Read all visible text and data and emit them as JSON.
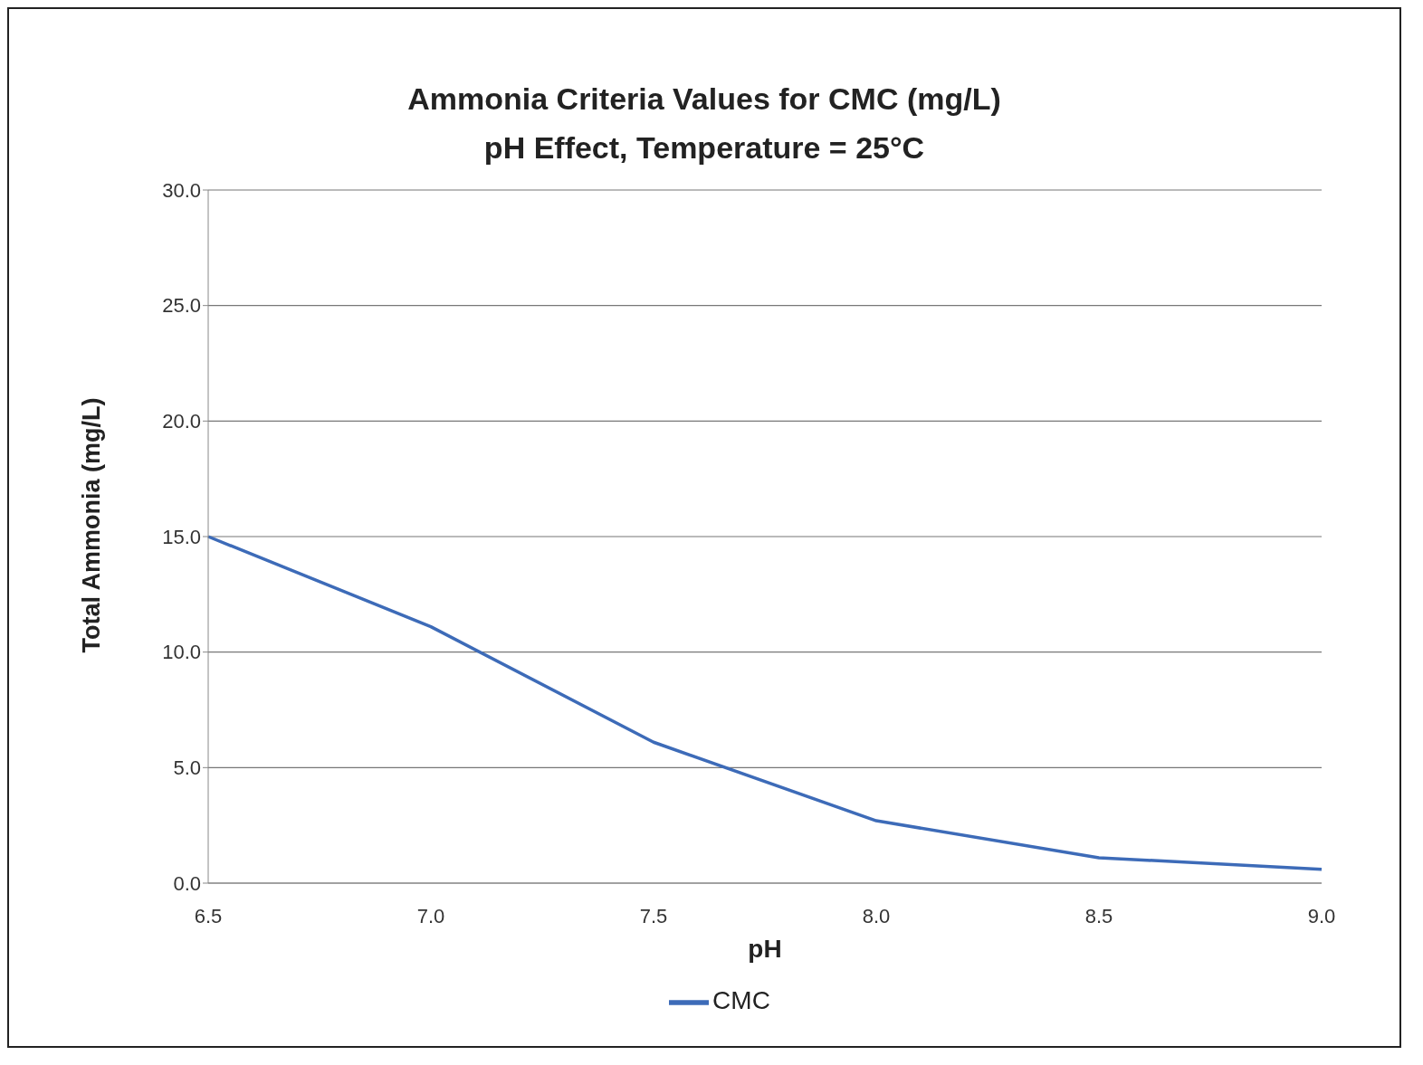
{
  "chart_data": {
    "type": "line",
    "title": "Ammonia Criteria Values for CMC (mg/L)",
    "subtitle": "pH Effect, Temperature = 25°C",
    "xlabel": "pH",
    "ylabel": "Total Ammonia (mg/L)",
    "categories": [
      "6.5",
      "7.0",
      "7.5",
      "8.0",
      "8.5",
      "9.0"
    ],
    "series": [
      {
        "name": "CMC",
        "color": "#3d6bb8",
        "values": [
          15.0,
          11.1,
          6.1,
          2.7,
          1.1,
          0.6
        ]
      }
    ],
    "ylim": [
      0,
      30
    ],
    "yticks": [
      {
        "value": 0,
        "label": "0.0"
      },
      {
        "value": 5,
        "label": "5.0"
      },
      {
        "value": 10,
        "label": "10.0"
      },
      {
        "value": 15,
        "label": "15.0"
      },
      {
        "value": 20,
        "label": "20.0"
      },
      {
        "value": 25,
        "label": "25.0"
      },
      {
        "value": 30,
        "label": "30.0"
      }
    ],
    "grid": "y",
    "legend": "bottom",
    "marker": "none",
    "line_style": "solid"
  }
}
